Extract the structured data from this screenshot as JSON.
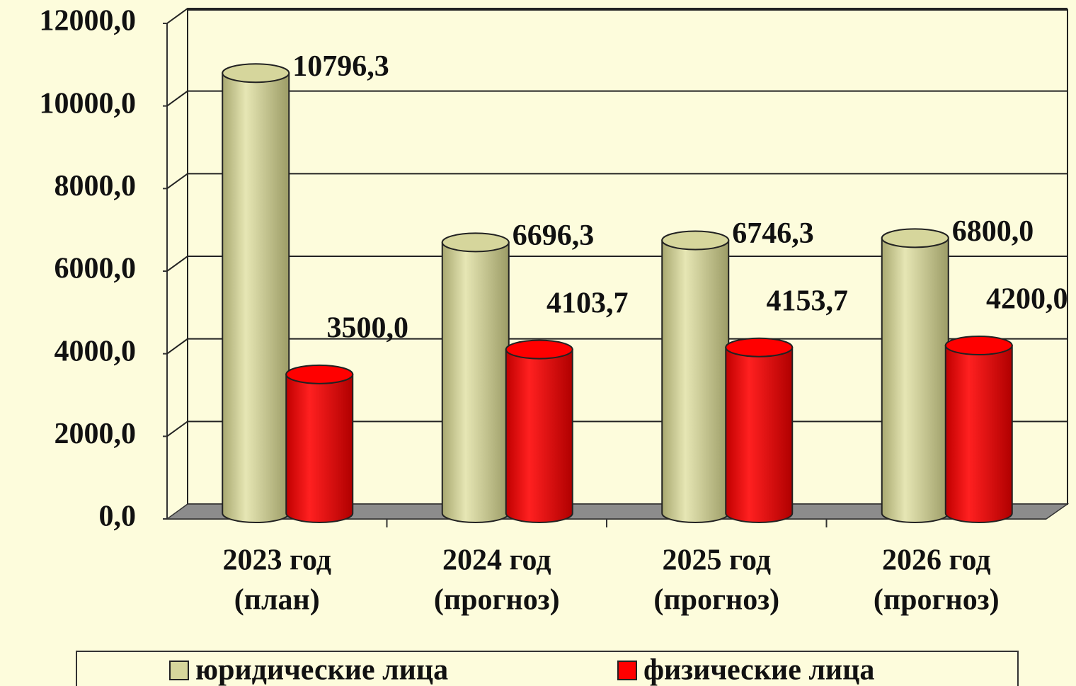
{
  "chart_data": {
    "type": "bar3d",
    "categories": [
      [
        "2023 год",
        "(план)"
      ],
      [
        "2024 год",
        "(прогноз)"
      ],
      [
        "2025 год",
        "(прогноз)"
      ],
      [
        "2026 год",
        "(прогноз)"
      ]
    ],
    "series": [
      {
        "name": "юридические лица",
        "color": "#d6d69c",
        "values": [
          10796.3,
          6696.3,
          6746.3,
          6800.0
        ],
        "value_labels": [
          "10796,3",
          "6696,3",
          "6746,3",
          "6800,0"
        ]
      },
      {
        "name": "физические лица",
        "color": "#ff0000",
        "values": [
          3500.0,
          4103.7,
          4153.7,
          4200.0
        ],
        "value_labels": [
          "3500,0",
          "4103,7",
          "4153,7",
          "4200,0"
        ]
      }
    ],
    "ylim": [
      0,
      12000
    ],
    "yticks": [
      {
        "value": 0,
        "label": "0,0"
      },
      {
        "value": 2000,
        "label": "2000,0"
      },
      {
        "value": 4000,
        "label": "4000,0"
      },
      {
        "value": 6000,
        "label": "6000,0"
      },
      {
        "value": 8000,
        "label": "8000,0"
      },
      {
        "value": 10000,
        "label": "10000,0"
      },
      {
        "value": 12000,
        "label": "12000,0"
      }
    ],
    "grid": true,
    "legend": "bottom"
  }
}
